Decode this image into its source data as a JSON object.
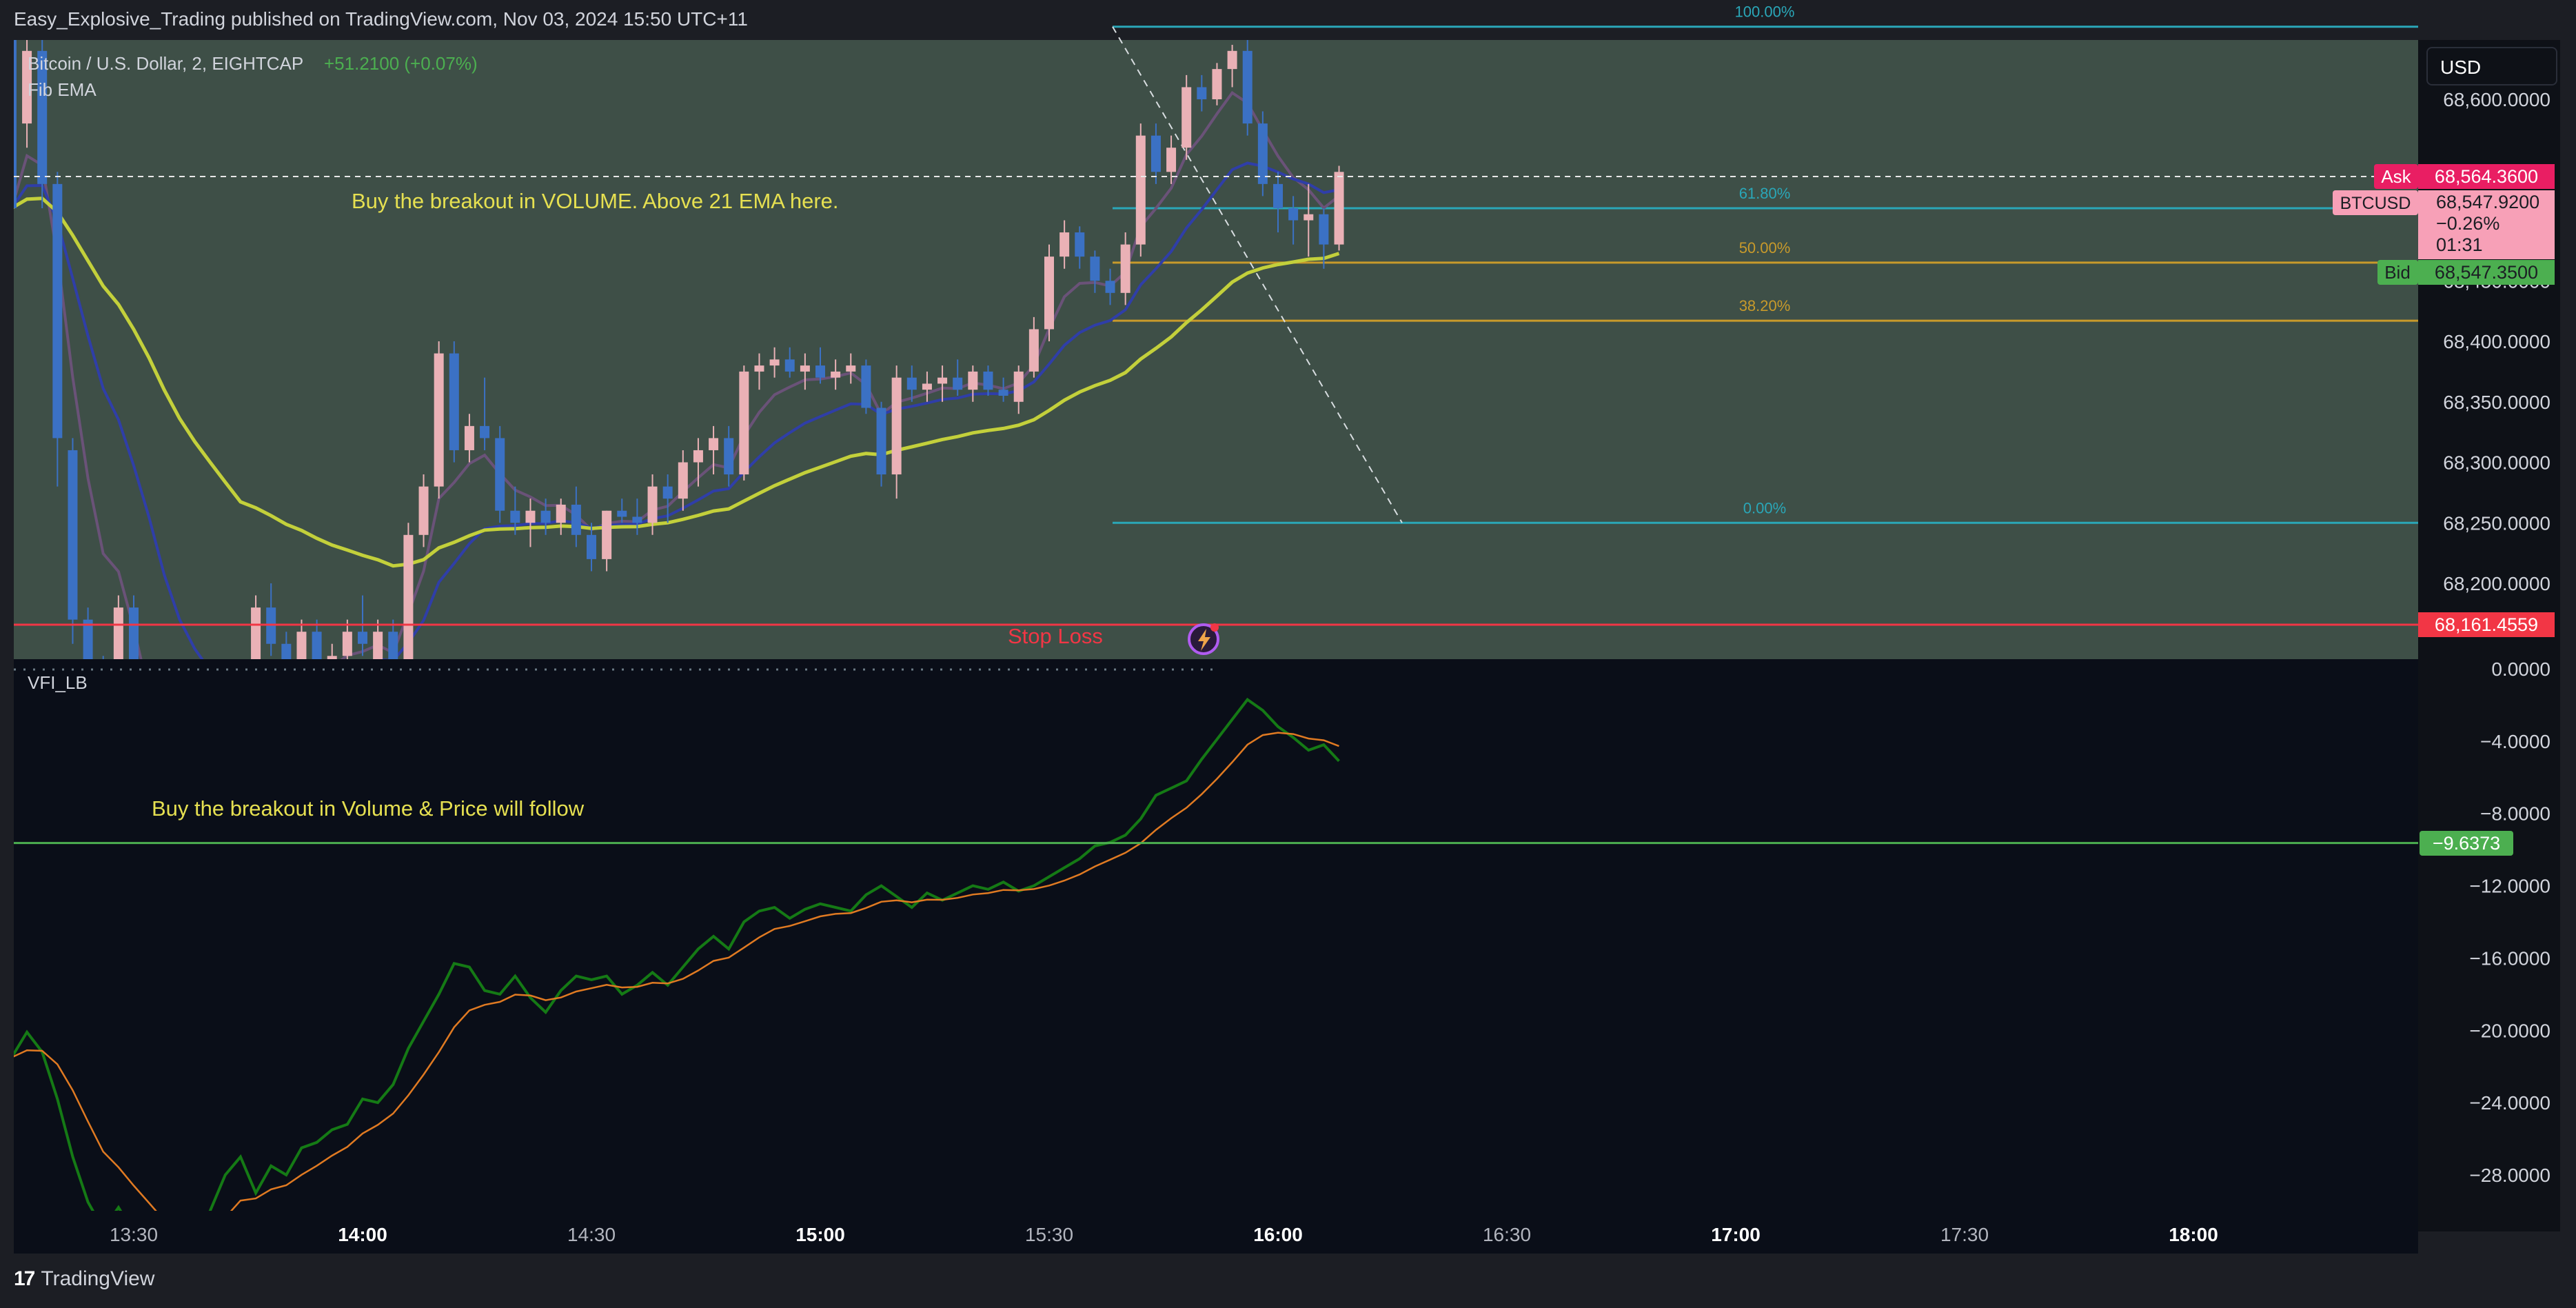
{
  "header": {
    "published_by": "Easy_Explosive_Trading published on TradingView.com, Nov 03, 2024 15:50 UTC+11"
  },
  "footer": {
    "brand": "TradingView"
  },
  "currency_selector": {
    "label": "USD"
  },
  "colors": {
    "up": "#eab1b6",
    "down": "#3b71c4",
    "price_bg": "#3e4f47",
    "vfi_bg": "#0a0e18",
    "vfi_line": "#157a15",
    "vfi_signal": "#e07a22",
    "ema_fast": "#6a5278",
    "ema_mid": "#2f3ea8",
    "ema_slow": "#c3d03b"
  },
  "price_pane": {
    "legend": {
      "symbol": "Bitcoin / U.S. Dollar, 2, EIGHTCAP",
      "change": "+51.2100 (+0.07%)",
      "indicator": "Fib EMA"
    },
    "annotation": "Buy the breakout in VOLUME. Above 21 EMA here.",
    "stop_loss": {
      "label": "Stop Loss",
      "value": "68,161.4559"
    },
    "ask": {
      "label": "Ask",
      "value": "68,564.3600"
    },
    "btcusd": {
      "label": "BTCUSD",
      "price": "68,547.9200",
      "change": "−0.26%",
      "countdown": "01:31"
    },
    "bid": {
      "label": "Bid",
      "value": "68,547.3500"
    },
    "fib_levels": [
      {
        "label": "100.00%",
        "price": 68660
      },
      {
        "label": "61.80%",
        "price": 68510
      },
      {
        "label": "50.00%",
        "price": 68465
      },
      {
        "label": "38.20%",
        "price": 68417
      },
      {
        "label": "0.00%",
        "price": 68250
      }
    ],
    "y_ticks": [
      "68,600.0000",
      "68,450.0000",
      "68,400.0000",
      "68,350.0000",
      "68,300.0000",
      "68,250.0000",
      "68,200.0000"
    ]
  },
  "vfi_pane": {
    "legend": "VFI_LB",
    "annotation": "Buy the breakout in Volume & Price will follow",
    "level": {
      "value": "−9.6373",
      "y": -9.6373
    },
    "y_ticks": [
      "0.0000",
      "−4.0000",
      "−8.0000",
      "−12.0000",
      "−16.0000",
      "−20.0000",
      "−24.0000",
      "−28.0000"
    ]
  },
  "x_ticks": [
    {
      "label": "13:30",
      "bold": false
    },
    {
      "label": "14:00",
      "bold": true
    },
    {
      "label": "14:30",
      "bold": false
    },
    {
      "label": "15:00",
      "bold": true
    },
    {
      "label": "15:30",
      "bold": false
    },
    {
      "label": "16:00",
      "bold": true
    },
    {
      "label": "16:30",
      "bold": false
    },
    {
      "label": "17:00",
      "bold": true
    },
    {
      "label": "17:30",
      "bold": false
    },
    {
      "label": "18:00",
      "bold": true
    }
  ],
  "chart_data": {
    "type": "candlestick",
    "interval_minutes": 2,
    "start_time": "13:14",
    "ylim_price": [
      68140,
      68690
    ],
    "ylim_vfi": [
      -29.5,
      0
    ],
    "candles": [
      [
        68650,
        68660,
        68480,
        68510
      ],
      [
        68580,
        68650,
        68560,
        68640
      ],
      [
        68640,
        68650,
        68510,
        68530
      ],
      [
        68530,
        68540,
        68280,
        68320
      ],
      [
        68310,
        68320,
        68150,
        68170
      ],
      [
        68170,
        68180,
        68100,
        68120
      ],
      [
        68120,
        68140,
        68090,
        68100
      ],
      [
        68100,
        68190,
        68090,
        68180
      ],
      [
        68180,
        68190,
        68060,
        68070
      ],
      [
        68050,
        68060,
        67980,
        68000
      ],
      [
        68000,
        68020,
        67900,
        67920
      ],
      [
        67920,
        67960,
        67900,
        67950
      ],
      [
        67950,
        68010,
        67940,
        68000
      ],
      [
        68010,
        68030,
        67980,
        68020
      ],
      [
        68020,
        68040,
        67990,
        68010
      ],
      [
        68010,
        68030,
        67990,
        68000
      ],
      [
        68130,
        68190,
        68120,
        68180
      ],
      [
        68180,
        68200,
        68140,
        68150
      ],
      [
        68150,
        68160,
        68120,
        68130
      ],
      [
        68130,
        68170,
        68120,
        68160
      ],
      [
        68160,
        68170,
        68120,
        68130
      ],
      [
        68130,
        68150,
        68110,
        68140
      ],
      [
        68140,
        68170,
        68130,
        68160
      ],
      [
        68160,
        68190,
        68140,
        68150
      ],
      [
        68130,
        68170,
        68120,
        68160
      ],
      [
        68160,
        68170,
        68120,
        68130
      ],
      [
        68120,
        68250,
        68110,
        68240
      ],
      [
        68240,
        68290,
        68230,
        68280
      ],
      [
        68280,
        68400,
        68270,
        68390
      ],
      [
        68390,
        68400,
        68300,
        68310
      ],
      [
        68310,
        68340,
        68300,
        68330
      ],
      [
        68330,
        68370,
        68310,
        68320
      ],
      [
        68320,
        68330,
        68250,
        68260
      ],
      [
        68260,
        68280,
        68240,
        68250
      ],
      [
        68250,
        68270,
        68230,
        68260
      ],
      [
        68260,
        68270,
        68240,
        68250
      ],
      [
        68250,
        68270,
        68240,
        68265
      ],
      [
        68265,
        68280,
        68230,
        68240
      ],
      [
        68240,
        68250,
        68210,
        68220
      ],
      [
        68220,
        68260,
        68210,
        68260
      ],
      [
        68260,
        68270,
        68250,
        68255
      ],
      [
        68255,
        68270,
        68240,
        68250
      ],
      [
        68250,
        68290,
        68240,
        68280
      ],
      [
        68280,
        68290,
        68250,
        68270
      ],
      [
        68270,
        68310,
        68260,
        68300
      ],
      [
        68300,
        68320,
        68280,
        68310
      ],
      [
        68310,
        68330,
        68290,
        68320
      ],
      [
        68320,
        68330,
        68280,
        68290
      ],
      [
        68290,
        68380,
        68285,
        68375
      ],
      [
        68375,
        68390,
        68360,
        68380
      ],
      [
        68380,
        68395,
        68370,
        68385
      ],
      [
        68385,
        68395,
        68370,
        68375
      ],
      [
        68375,
        68390,
        68360,
        68380
      ],
      [
        68380,
        68395,
        68365,
        68370
      ],
      [
        68370,
        68385,
        68360,
        68375
      ],
      [
        68375,
        68390,
        68365,
        68380
      ],
      [
        68380,
        68385,
        68340,
        68345
      ],
      [
        68345,
        68350,
        68280,
        68290
      ],
      [
        68290,
        68380,
        68270,
        68370
      ],
      [
        68370,
        68380,
        68350,
        68360
      ],
      [
        68360,
        68375,
        68350,
        68365
      ],
      [
        68365,
        68380,
        68350,
        68370
      ],
      [
        68370,
        68385,
        68355,
        68360
      ],
      [
        68360,
        68380,
        68350,
        68375
      ],
      [
        68375,
        68380,
        68355,
        68360
      ],
      [
        68360,
        68370,
        68350,
        68355
      ],
      [
        68350,
        68380,
        68340,
        68375
      ],
      [
        68375,
        68420,
        68370,
        68410
      ],
      [
        68410,
        68480,
        68400,
        68470
      ],
      [
        68470,
        68500,
        68460,
        68490
      ],
      [
        68490,
        68495,
        68460,
        68470
      ],
      [
        68470,
        68475,
        68440,
        68450
      ],
      [
        68450,
        68460,
        68430,
        68440
      ],
      [
        68440,
        68490,
        68430,
        68480
      ],
      [
        68480,
        68580,
        68470,
        68570
      ],
      [
        68570,
        68580,
        68530,
        68540
      ],
      [
        68540,
        68570,
        68530,
        68560
      ],
      [
        68560,
        68620,
        68550,
        68610
      ],
      [
        68610,
        68620,
        68590,
        68600
      ],
      [
        68600,
        68630,
        68595,
        68625
      ],
      [
        68625,
        68645,
        68610,
        68640
      ],
      [
        68640,
        68660,
        68570,
        68580
      ],
      [
        68580,
        68590,
        68520,
        68530
      ],
      [
        68530,
        68540,
        68490,
        68510
      ],
      [
        68510,
        68520,
        68480,
        68500
      ],
      [
        68500,
        68530,
        68470,
        68505
      ],
      [
        68505,
        68510,
        68460,
        68480
      ],
      [
        68480,
        68545,
        68475,
        68540
      ]
    ],
    "vfi": [
      -21.5,
      -20.1,
      -21.2,
      -23.8,
      -27.0,
      -29.5,
      -31.0,
      -29.8,
      -31.2,
      -32.0,
      -33.0,
      -34.0,
      -32.5,
      -30.0,
      -28.0,
      -27.0,
      -29.0,
      -27.5,
      -28.0,
      -26.5,
      -26.2,
      -25.5,
      -25.2,
      -23.8,
      -24.0,
      -23.0,
      -21.0,
      -19.5,
      -18.0,
      -16.3,
      -16.5,
      -17.8,
      -18.0,
      -17.0,
      -18.2,
      -19.0,
      -17.8,
      -17.0,
      -17.2,
      -17.0,
      -18.0,
      -17.5,
      -16.8,
      -17.5,
      -16.5,
      -15.5,
      -14.8,
      -15.5,
      -14.0,
      -13.4,
      -13.2,
      -13.8,
      -13.3,
      -13.0,
      -13.2,
      -13.4,
      -12.5,
      -12.0,
      -12.6,
      -13.2,
      -12.4,
      -12.8,
      -12.4,
      -12.0,
      -12.2,
      -11.8,
      -12.3,
      -12.0,
      -11.5,
      -11.0,
      -10.5,
      -9.8,
      -9.6,
      -9.2,
      -8.3,
      -7.0,
      -6.6,
      -6.2,
      -5.0,
      -3.9,
      -2.8,
      -1.7,
      -2.3,
      -3.2,
      -3.8,
      -4.5,
      -4.2,
      -5.1
    ]
  }
}
